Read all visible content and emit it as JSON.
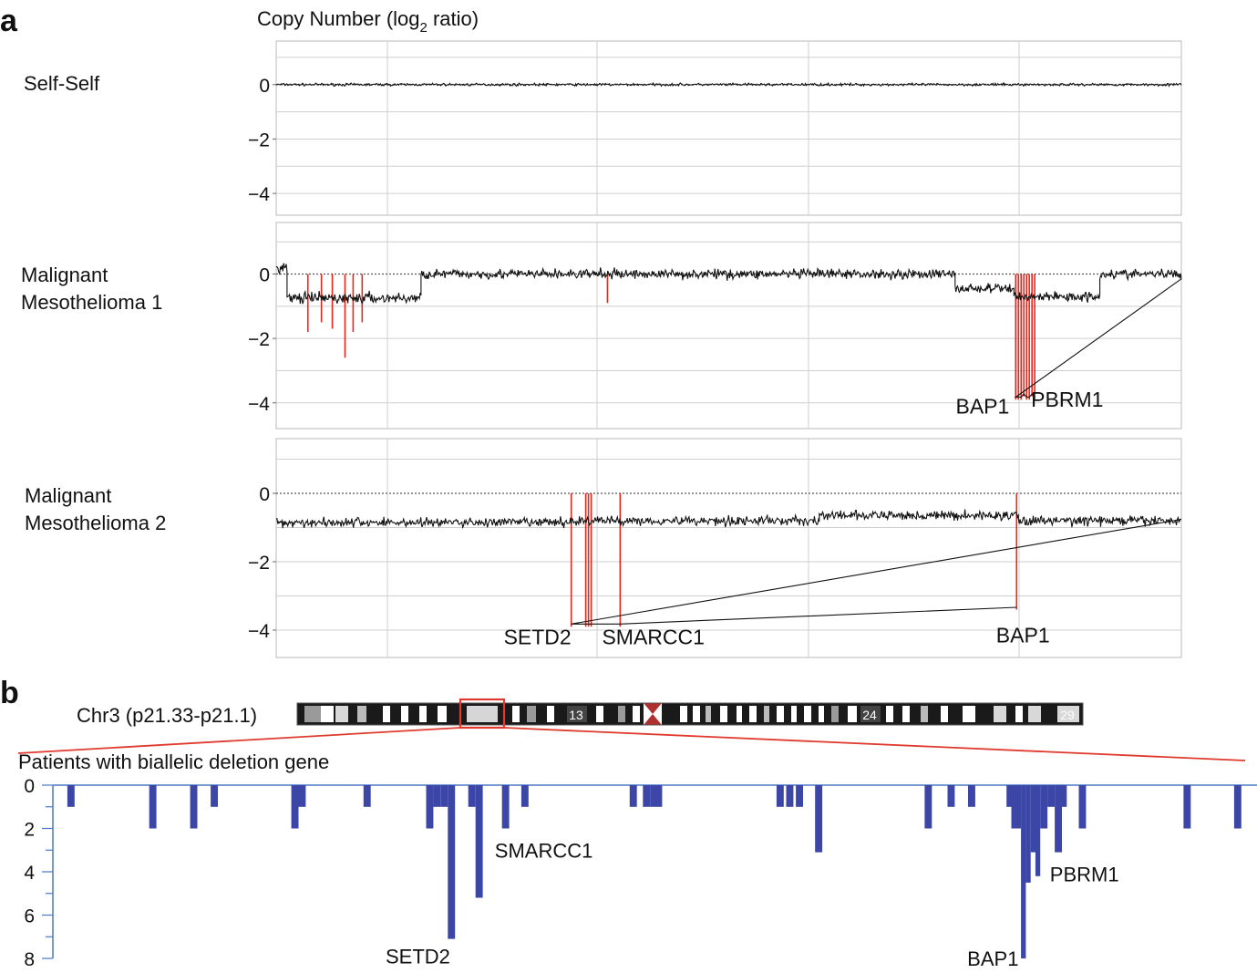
{
  "figure": {
    "panel_a_letter": "a",
    "panel_b_letter": "b",
    "chromosome_label": "Chr3 (p21.33-p21.1)",
    "ideogram_band_labels": [
      "13",
      "24",
      "29"
    ],
    "colors": {
      "trace": "#111111",
      "deletion": "#e8281e",
      "bars": "#3b46a6",
      "axis_b": "#4a78c8",
      "grid": "#cfcfcf",
      "zoom": "#e03a2e"
    }
  },
  "chart_data": [
    {
      "type": "line",
      "title": "Copy Number (log2 ratio)",
      "title_main": "Copy Number (log",
      "title_sub": "2",
      "title_tail": " ratio)",
      "ylim": [
        -4.8,
        1.6
      ],
      "yticks": [
        0,
        -2,
        -4
      ],
      "ytick_labels": [
        "0",
        "−2",
        "−4"
      ],
      "grid": true,
      "x_domain": [
        0,
        1
      ],
      "panels": [
        {
          "name": "Self-Self",
          "label_lines": [
            "Self-Self"
          ],
          "segments": [
            {
              "x": [
                0,
                1
              ],
              "mean": 0.0,
              "noise": 0.04
            }
          ],
          "deletions": [],
          "gene_labels": []
        },
        {
          "name": "Malignant Mesothelioma 1",
          "label_lines": [
            "Malignant",
            "Mesothelioma 1"
          ],
          "segments": [
            {
              "x": [
                0,
                0.012
              ],
              "mean": 0.2,
              "noise": 0.15
            },
            {
              "x": [
                0.012,
                0.16
              ],
              "mean": -0.75,
              "noise": 0.15
            },
            {
              "x": [
                0.16,
                0.75
              ],
              "mean": 0.0,
              "noise": 0.13
            },
            {
              "x": [
                0.75,
                0.815
              ],
              "mean": -0.45,
              "noise": 0.13
            },
            {
              "x": [
                0.815,
                0.91
              ],
              "mean": -0.7,
              "noise": 0.13
            },
            {
              "x": [
                0.91,
                1.0
              ],
              "mean": 0.0,
              "noise": 0.13
            }
          ],
          "deletions": [
            {
              "x": 0.035,
              "depth": -1.8
            },
            {
              "x": 0.05,
              "depth": -1.5
            },
            {
              "x": 0.062,
              "depth": -1.7
            },
            {
              "x": 0.076,
              "depth": -2.6
            },
            {
              "x": 0.085,
              "depth": -1.8
            },
            {
              "x": 0.095,
              "depth": -1.5
            },
            {
              "x": 0.366,
              "depth": -0.9
            },
            {
              "x": 0.817,
              "depth": -3.9
            },
            {
              "x": 0.82,
              "depth": -3.9
            },
            {
              "x": 0.823,
              "depth": -3.9
            },
            {
              "x": 0.826,
              "depth": -3.8
            },
            {
              "x": 0.829,
              "depth": -3.9
            },
            {
              "x": 0.832,
              "depth": -3.9
            },
            {
              "x": 0.835,
              "depth": -3.8
            },
            {
              "x": 0.838,
              "depth": -3.9
            }
          ],
          "gene_labels": [
            {
              "text": "BAP1",
              "x": 0.81,
              "y": -4.1,
              "anchor": "end"
            },
            {
              "text": "PBRM1",
              "x": 0.834,
              "y": -3.9,
              "anchor": "start"
            }
          ]
        },
        {
          "name": "Malignant Mesothelioma 2",
          "label_lines": [
            "Malignant",
            "Mesothelioma 2"
          ],
          "segments": [
            {
              "x": [
                0,
                0.325
              ],
              "mean": -0.85,
              "noise": 0.12
            },
            {
              "x": [
                0.325,
                0.6
              ],
              "mean": -0.8,
              "noise": 0.12
            },
            {
              "x": [
                0.6,
                0.82
              ],
              "mean": -0.65,
              "noise": 0.12
            },
            {
              "x": [
                0.82,
                1.0
              ],
              "mean": -0.8,
              "noise": 0.12
            }
          ],
          "deletions": [
            {
              "x": 0.326,
              "depth": -3.9
            },
            {
              "x": 0.342,
              "depth": -3.9
            },
            {
              "x": 0.345,
              "depth": -3.9
            },
            {
              "x": 0.348,
              "depth": -3.9
            },
            {
              "x": 0.38,
              "depth": -3.9
            },
            {
              "x": 0.818,
              "depth": -3.4
            }
          ],
          "gene_labels": [
            {
              "text": "SETD2",
              "x": 0.326,
              "y": -4.2,
              "anchor": "end"
            },
            {
              "text": "SMARCC1",
              "x": 0.36,
              "y": -4.2,
              "anchor": "start"
            },
            {
              "text": "BAP1",
              "x": 0.825,
              "y": -4.15,
              "anchor": "middle"
            }
          ]
        }
      ]
    },
    {
      "type": "bar",
      "title": "Patients with biallelic deletion gene",
      "ylim": [
        0,
        8
      ],
      "y_inverted": true,
      "yticks": [
        0,
        2,
        4,
        6,
        8
      ],
      "xlim": [
        0,
        1000
      ],
      "bars": [
        {
          "x": 12,
          "w": 6,
          "v": 1
        },
        {
          "x": 80,
          "w": 6,
          "v": 2
        },
        {
          "x": 114,
          "w": 6,
          "v": 2
        },
        {
          "x": 131,
          "w": 6,
          "v": 1
        },
        {
          "x": 198,
          "w": 6,
          "v": 2
        },
        {
          "x": 204,
          "w": 6,
          "v": 1
        },
        {
          "x": 258,
          "w": 6,
          "v": 1
        },
        {
          "x": 310,
          "w": 6,
          "v": 2
        },
        {
          "x": 316,
          "w": 6,
          "v": 1
        },
        {
          "x": 322,
          "w": 6,
          "v": 1
        },
        {
          "x": 328,
          "w": 6,
          "v": 7.1
        },
        {
          "x": 345,
          "w": 6,
          "v": 1
        },
        {
          "x": 351,
          "w": 6,
          "v": 5.2
        },
        {
          "x": 373,
          "w": 6,
          "v": 2
        },
        {
          "x": 389,
          "w": 6,
          "v": 1
        },
        {
          "x": 479,
          "w": 6,
          "v": 1
        },
        {
          "x": 490,
          "w": 6,
          "v": 1
        },
        {
          "x": 496,
          "w": 10,
          "v": 1
        },
        {
          "x": 601,
          "w": 6,
          "v": 1
        },
        {
          "x": 609,
          "w": 6,
          "v": 1
        },
        {
          "x": 617,
          "w": 6,
          "v": 1
        },
        {
          "x": 633,
          "w": 6,
          "v": 3.1
        },
        {
          "x": 724,
          "w": 6,
          "v": 2
        },
        {
          "x": 743,
          "w": 6,
          "v": 1
        },
        {
          "x": 760,
          "w": 6,
          "v": 1
        },
        {
          "x": 792,
          "w": 4,
          "v": 1
        },
        {
          "x": 796,
          "w": 8,
          "v": 2
        },
        {
          "x": 804,
          "w": 4,
          "v": 8
        },
        {
          "x": 808,
          "w": 4,
          "v": 4.5
        },
        {
          "x": 812,
          "w": 4,
          "v": 3.1
        },
        {
          "x": 816,
          "w": 4,
          "v": 4.2
        },
        {
          "x": 820,
          "w": 6,
          "v": 2
        },
        {
          "x": 826,
          "w": 6,
          "v": 1
        },
        {
          "x": 832,
          "w": 6,
          "v": 3.1
        },
        {
          "x": 838,
          "w": 4,
          "v": 1
        },
        {
          "x": 852,
          "w": 6,
          "v": 2
        },
        {
          "x": 939,
          "w": 6,
          "v": 2
        },
        {
          "x": 981,
          "w": 6,
          "v": 2
        }
      ],
      "gene_labels": [
        {
          "text": "SMARCC1",
          "x": 367,
          "v": 3.0,
          "anchor": "start"
        },
        {
          "text": "PBRM1",
          "x": 828,
          "v": 4.1,
          "anchor": "start"
        },
        {
          "text": "SETD2",
          "x": 330,
          "v": 7.9,
          "anchor": "end"
        },
        {
          "text": "BAP1",
          "x": 802,
          "v": 8.0,
          "anchor": "end"
        }
      ]
    }
  ]
}
